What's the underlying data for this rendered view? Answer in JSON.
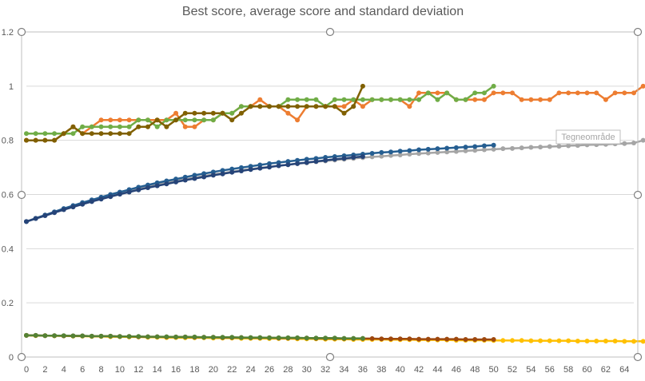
{
  "chart_data": {
    "type": "line",
    "title": "Best score, average score and standard deviation",
    "xlabel": "",
    "ylabel": "",
    "xlim": [
      0,
      65
    ],
    "ylim": [
      0,
      1.2
    ],
    "yticks": [
      "0",
      "0.2",
      "0.4",
      "0.6",
      "0.8",
      "1",
      "1.2"
    ],
    "xticks": [
      "0",
      "2",
      "4",
      "6",
      "8",
      "10",
      "12",
      "14",
      "16",
      "18",
      "20",
      "22",
      "24",
      "26",
      "28",
      "30",
      "32",
      "34",
      "36",
      "38",
      "40",
      "42",
      "44",
      "46",
      "48",
      "50",
      "52",
      "54",
      "56",
      "58",
      "60",
      "62",
      "64"
    ],
    "grid": true,
    "legend": "none",
    "series": [
      {
        "color": "#ed7d31",
        "x_start": 0,
        "values": [
          0.8,
          0.8,
          0.8,
          0.8,
          0.825,
          0.85,
          0.825,
          0.85,
          0.875,
          0.875,
          0.875,
          0.875,
          0.875,
          0.875,
          0.875,
          0.875,
          0.9,
          0.85,
          0.85,
          0.875,
          0.875,
          0.9,
          0.9,
          0.925,
          0.925,
          0.95,
          0.925,
          0.925,
          0.9,
          0.875,
          0.925,
          0.925,
          0.925,
          0.925,
          0.925,
          0.95,
          0.925,
          0.95,
          0.95,
          0.95,
          0.95,
          0.925,
          0.975,
          0.975,
          0.975,
          0.975,
          0.95,
          0.95,
          0.95,
          0.95,
          0.975,
          0.975,
          0.975,
          0.95,
          0.95,
          0.95,
          0.95,
          0.975,
          0.975,
          0.975,
          0.975,
          0.975,
          0.95,
          0.975,
          0.975,
          0.975,
          1.0
        ]
      },
      {
        "color": "#70ad47",
        "x_start": 0,
        "values": [
          0.825,
          0.825,
          0.825,
          0.825,
          0.825,
          0.825,
          0.85,
          0.85,
          0.85,
          0.85,
          0.85,
          0.85,
          0.875,
          0.875,
          0.85,
          0.875,
          0.875,
          0.875,
          0.875,
          0.875,
          0.875,
          0.9,
          0.9,
          0.925,
          0.925,
          0.925,
          0.925,
          0.925,
          0.95,
          0.95,
          0.95,
          0.95,
          0.925,
          0.95,
          0.95,
          0.95,
          0.95,
          0.95,
          0.95,
          0.95,
          0.95,
          0.95,
          0.95,
          0.975,
          0.95,
          0.975,
          0.95,
          0.95,
          0.975,
          0.975,
          1.0
        ]
      },
      {
        "color": "#806000",
        "x_start": 0,
        "values": [
          0.8,
          0.8,
          0.8,
          0.8,
          0.825,
          0.85,
          0.825,
          0.825,
          0.825,
          0.825,
          0.825,
          0.825,
          0.85,
          0.85,
          0.875,
          0.85,
          0.875,
          0.9,
          0.9,
          0.9,
          0.9,
          0.9,
          0.875,
          0.9,
          0.925,
          0.925,
          0.925,
          0.925,
          0.925,
          0.925,
          0.925,
          0.925,
          0.925,
          0.925,
          0.9,
          0.925,
          1.0
        ]
      },
      {
        "color": "#a5a5a5",
        "x_start": 0,
        "values": [
          0.5,
          0.512,
          0.524,
          0.535,
          0.546,
          0.557,
          0.567,
          0.577,
          0.587,
          0.596,
          0.605,
          0.613,
          0.621,
          0.629,
          0.636,
          0.643,
          0.65,
          0.656,
          0.662,
          0.668,
          0.674,
          0.679,
          0.684,
          0.689,
          0.694,
          0.698,
          0.702,
          0.706,
          0.71,
          0.714,
          0.717,
          0.721,
          0.724,
          0.727,
          0.73,
          0.733,
          0.736,
          0.739,
          0.741,
          0.744,
          0.746,
          0.749,
          0.751,
          0.753,
          0.755,
          0.757,
          0.759,
          0.761,
          0.763,
          0.765,
          0.767,
          0.769,
          0.77,
          0.772,
          0.774,
          0.775,
          0.777,
          0.778,
          0.78,
          0.781,
          0.783,
          0.784,
          0.785,
          0.787,
          0.788,
          0.79,
          0.8
        ]
      },
      {
        "color": "#255e91",
        "x_start": 0,
        "values": [
          0.5,
          0.512,
          0.524,
          0.536,
          0.548,
          0.559,
          0.57,
          0.58,
          0.59,
          0.6,
          0.609,
          0.618,
          0.627,
          0.635,
          0.643,
          0.65,
          0.657,
          0.664,
          0.671,
          0.677,
          0.683,
          0.689,
          0.694,
          0.699,
          0.704,
          0.709,
          0.714,
          0.718,
          0.722,
          0.726,
          0.73,
          0.733,
          0.737,
          0.74,
          0.743,
          0.746,
          0.749,
          0.752,
          0.755,
          0.757,
          0.76,
          0.762,
          0.765,
          0.767,
          0.769,
          0.771,
          0.773,
          0.775,
          0.777,
          0.78,
          0.782
        ]
      },
      {
        "color": "#264478",
        "x_start": 0,
        "values": [
          0.5,
          0.511,
          0.522,
          0.533,
          0.544,
          0.554,
          0.564,
          0.574,
          0.583,
          0.592,
          0.601,
          0.609,
          0.617,
          0.625,
          0.632,
          0.639,
          0.646,
          0.653,
          0.659,
          0.665,
          0.671,
          0.676,
          0.682,
          0.687,
          0.692,
          0.697,
          0.701,
          0.706,
          0.71,
          0.714,
          0.718,
          0.722,
          0.726,
          0.73,
          0.733,
          0.737,
          0.74
        ]
      },
      {
        "color": "#ffc000",
        "x_start": 0,
        "values": [
          0.08,
          0.079,
          0.079,
          0.078,
          0.078,
          0.077,
          0.077,
          0.076,
          0.076,
          0.075,
          0.075,
          0.074,
          0.074,
          0.073,
          0.073,
          0.072,
          0.072,
          0.071,
          0.071,
          0.071,
          0.07,
          0.07,
          0.07,
          0.069,
          0.069,
          0.069,
          0.068,
          0.068,
          0.068,
          0.067,
          0.067,
          0.067,
          0.066,
          0.066,
          0.066,
          0.065,
          0.065,
          0.065,
          0.065,
          0.064,
          0.064,
          0.064,
          0.063,
          0.063,
          0.063,
          0.063,
          0.062,
          0.062,
          0.062,
          0.062,
          0.061,
          0.061,
          0.061,
          0.061,
          0.06,
          0.06,
          0.06,
          0.06,
          0.06,
          0.059,
          0.059,
          0.059,
          0.059,
          0.059,
          0.058,
          0.058,
          0.058
        ]
      },
      {
        "color": "#9e480e",
        "x_start": 0,
        "values": [
          0.08,
          0.08,
          0.079,
          0.079,
          0.078,
          0.078,
          0.078,
          0.077,
          0.077,
          0.077,
          0.076,
          0.076,
          0.075,
          0.075,
          0.075,
          0.074,
          0.074,
          0.074,
          0.073,
          0.073,
          0.073,
          0.072,
          0.072,
          0.072,
          0.071,
          0.071,
          0.071,
          0.07,
          0.07,
          0.07,
          0.07,
          0.069,
          0.069,
          0.069,
          0.068,
          0.068,
          0.068,
          0.068,
          0.067,
          0.067,
          0.067,
          0.067,
          0.066,
          0.066,
          0.066,
          0.066,
          0.066,
          0.065,
          0.065,
          0.065,
          0.065
        ]
      },
      {
        "color": "#548235",
        "x_start": 0,
        "values": [
          0.08,
          0.08,
          0.079,
          0.079,
          0.079,
          0.078,
          0.078,
          0.077,
          0.077,
          0.077,
          0.076,
          0.076,
          0.076,
          0.075,
          0.075,
          0.075,
          0.074,
          0.074,
          0.074,
          0.073,
          0.073,
          0.073,
          0.073,
          0.072,
          0.072,
          0.072,
          0.071,
          0.071,
          0.071,
          0.071,
          0.07,
          0.07,
          0.07,
          0.07,
          0.069,
          0.069,
          0.069
        ]
      }
    ]
  },
  "tooltip": {
    "label": "Tegneområde"
  }
}
